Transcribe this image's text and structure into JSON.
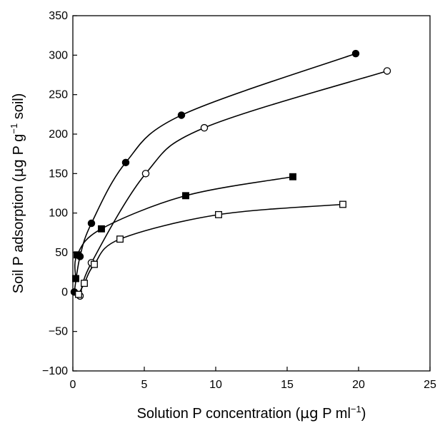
{
  "chart_data": {
    "type": "scatter",
    "title": "",
    "xlabel": "Solution P concentration (µg P ml⁻¹)",
    "xlabel_parts": [
      "Solution P concentration (",
      "µg",
      " P ml",
      "−1",
      ")"
    ],
    "ylabel": "Soil P adsorption (µg P g⁻¹ soil)",
    "ylabel_parts": [
      "Soil P adsorption (",
      "µg",
      " P g",
      "−1",
      " soil)"
    ],
    "xlim": [
      0,
      25
    ],
    "ylim": [
      -100,
      350
    ],
    "x_ticks": [
      0,
      5,
      10,
      15,
      20,
      25
    ],
    "x_tick_labels": [
      "0",
      "5",
      "10",
      "15",
      "20",
      "25"
    ],
    "y_ticks": [
      -100,
      -50,
      0,
      50,
      100,
      150,
      200,
      250,
      300,
      350
    ],
    "y_tick_labels": [
      "−100",
      "−50",
      "0",
      "50",
      "100",
      "150",
      "200",
      "250",
      "300",
      "350"
    ],
    "grid": false,
    "legend": "none",
    "series": [
      {
        "marker": "filled-circle",
        "color": "#000000",
        "x": [
          0.1,
          0.5,
          1.3,
          3.7,
          7.6,
          19.8
        ],
        "y": [
          0,
          45,
          87,
          164,
          224,
          302
        ]
      },
      {
        "marker": "open-circle",
        "color": "#000000",
        "x": [
          0.5,
          1.3,
          5.1,
          9.2,
          22.0
        ],
        "y": [
          -5,
          37,
          150,
          208,
          280
        ]
      },
      {
        "marker": "filled-square",
        "color": "#000000",
        "x": [
          0.2,
          0.3,
          2.0,
          7.9,
          15.4
        ],
        "y": [
          17,
          47,
          80,
          122,
          146
        ]
      },
      {
        "marker": "open-square",
        "color": "#000000",
        "x": [
          0.4,
          0.8,
          1.5,
          3.3,
          10.2,
          18.9
        ],
        "y": [
          -3,
          11,
          35,
          67,
          98,
          111
        ]
      }
    ]
  }
}
